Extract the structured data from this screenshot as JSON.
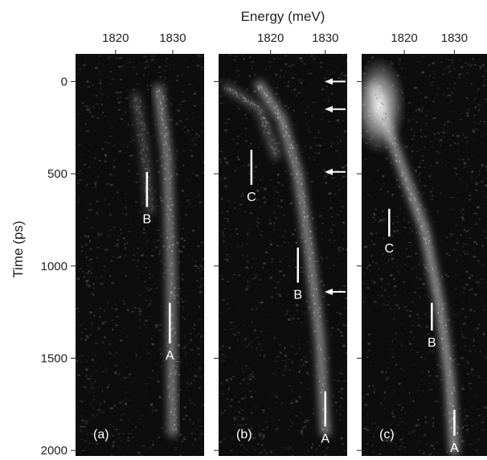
{
  "figure": {
    "top_xlabel": "Energy (meV)",
    "ylabel": "Time (ps)"
  },
  "chart_data": [
    {
      "type": "heatmap",
      "panel_label": "(a)",
      "x_ticks": [
        1820,
        1830
      ],
      "y_ticks": [
        0,
        500,
        1000,
        1500,
        2000
      ],
      "xlim": [
        1813,
        1835.5
      ],
      "ylim": [
        -150,
        2030
      ],
      "markers": [
        {
          "label": "B",
          "energy": 1825.5,
          "time_range": [
            490,
            680
          ]
        },
        {
          "label": "A",
          "energy": 1829.5,
          "time_range": [
            1200,
            1420
          ]
        }
      ],
      "arrows_at_time": [],
      "bright_streaks": [
        {
          "path": [
            [
              1827.5,
              40
            ],
            [
              1829,
              400
            ],
            [
              1829.7,
              1000
            ],
            [
              1829.8,
              1500
            ],
            [
              1830,
              1900
            ]
          ],
          "intensity": 0.45
        },
        {
          "path": [
            [
              1823.5,
              80
            ],
            [
              1825,
              350
            ],
            [
              1826,
              700
            ]
          ],
          "intensity": 0.18
        }
      ]
    },
    {
      "type": "heatmap",
      "panel_label": "(b)",
      "x_ticks": [
        1820,
        1830
      ],
      "y_ticks": [
        0,
        500,
        1000,
        1500,
        2000
      ],
      "xlim": [
        1810.5,
        1834
      ],
      "ylim": [
        -150,
        2030
      ],
      "markers": [
        {
          "label": "C",
          "energy": 1816.5,
          "time_range": [
            370,
            560
          ]
        },
        {
          "label": "B",
          "energy": 1825,
          "time_range": [
            900,
            1090
          ]
        },
        {
          "label": "A",
          "energy": 1830,
          "time_range": [
            1680,
            1870
          ]
        }
      ],
      "arrows_at_time": [
        0,
        150,
        490,
        1140
      ],
      "bright_streaks": [
        {
          "path": [
            [
              1818,
              20
            ],
            [
              1822,
              200
            ],
            [
              1825,
              500
            ],
            [
              1827,
              900
            ],
            [
              1829,
              1400
            ],
            [
              1830,
              1900
            ]
          ],
          "intensity": 0.5
        },
        {
          "path": [
            [
              1812,
              30
            ],
            [
              1818,
              150
            ],
            [
              1821,
              400
            ]
          ],
          "intensity": 0.25
        }
      ]
    },
    {
      "type": "heatmap",
      "panel_label": "(c)",
      "x_ticks": [
        1820,
        1830
      ],
      "y_ticks": [
        0,
        500,
        1000,
        1500,
        2000
      ],
      "xlim": [
        1811.5,
        1836.5
      ],
      "ylim": [
        -150,
        2030
      ],
      "markers": [
        {
          "label": "C",
          "energy": 1817,
          "time_range": [
            690,
            840
          ]
        },
        {
          "label": "B",
          "energy": 1825.5,
          "time_range": [
            1200,
            1350
          ]
        },
        {
          "label": "A",
          "energy": 1830,
          "time_range": [
            1780,
            1920
          ]
        }
      ],
      "arrows_at_time": [],
      "bright_streaks": [
        {
          "path": [
            [
              1814,
              40
            ],
            [
              1816,
              200
            ],
            [
              1820,
              500
            ],
            [
              1824,
              800
            ],
            [
              1827,
              1200
            ],
            [
              1829,
              1600
            ],
            [
              1830,
              2000
            ]
          ],
          "intensity": 0.55
        }
      ],
      "bright_blob": {
        "energy": 1815,
        "time": 130,
        "intensity": 0.95
      }
    }
  ]
}
